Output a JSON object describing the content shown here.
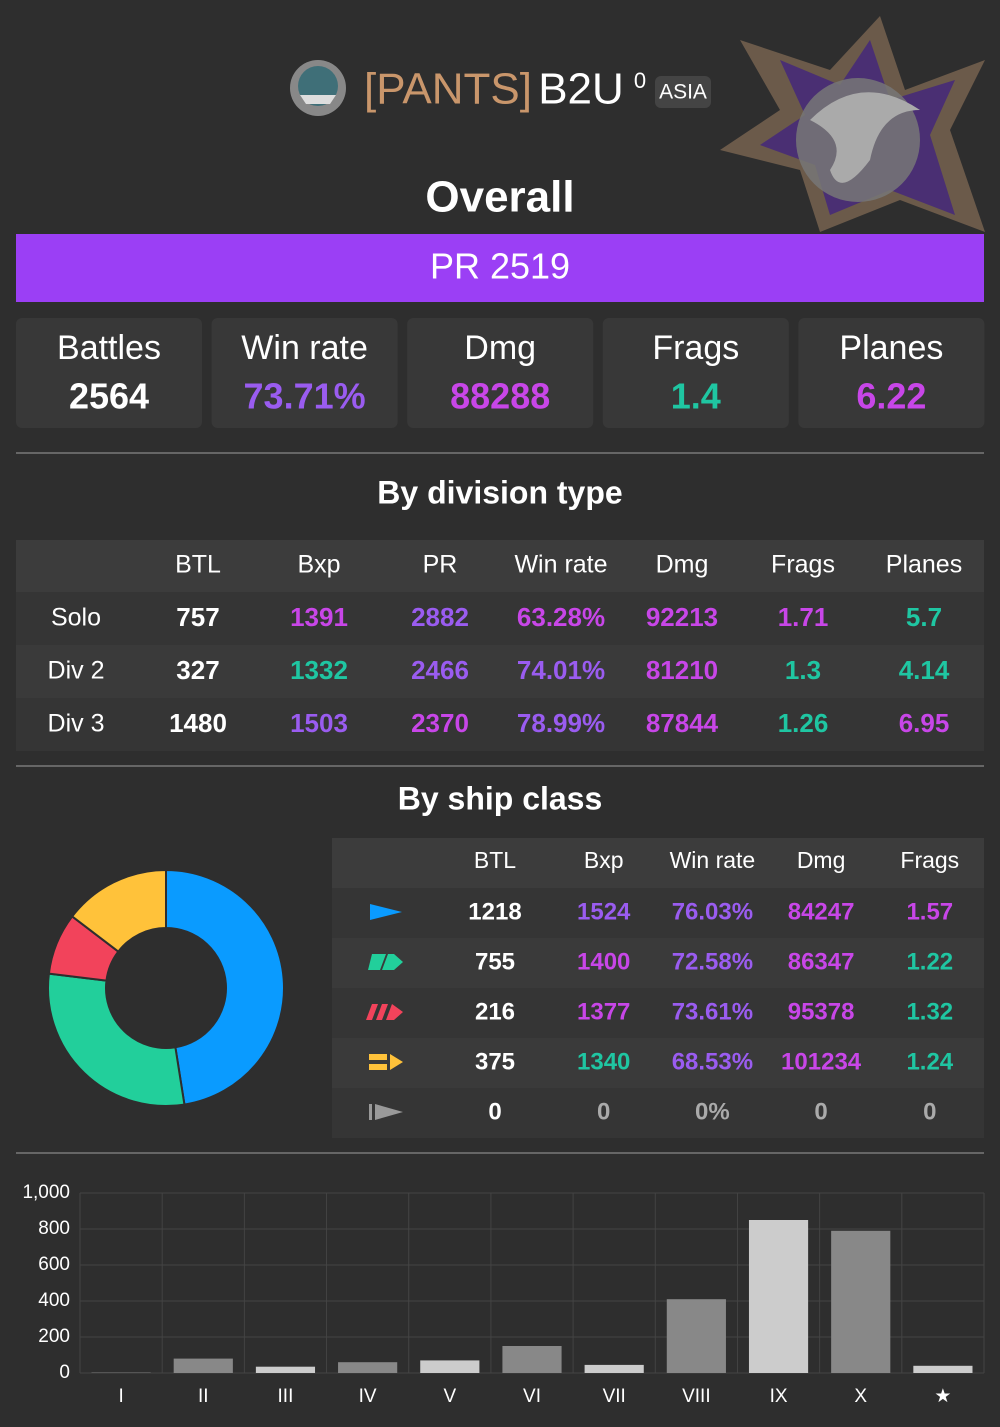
{
  "header": {
    "clan": "[PANTS]",
    "name": "B2U",
    "level": "0",
    "region": "ASIA"
  },
  "overall": {
    "title": "Overall",
    "pr": "PR 2519",
    "stats": [
      {
        "label": "Battles",
        "value": "2564",
        "color": "#ffffff"
      },
      {
        "label": "Win rate",
        "value": "73.71%",
        "color": "#9a5cf0"
      },
      {
        "label": "Dmg",
        "value": "88288",
        "color": "#c846e8"
      },
      {
        "label": "Frags",
        "value": "1.4",
        "color": "#1fc6a2"
      },
      {
        "label": "Planes",
        "value": "6.22",
        "color": "#c846e8"
      }
    ]
  },
  "division": {
    "title": "By division type",
    "columns": [
      "BTL",
      "Bxp",
      "PR",
      "Win rate",
      "Dmg",
      "Frags",
      "Planes"
    ],
    "rows": [
      {
        "label": "Solo",
        "cells": [
          "757",
          "1391",
          "2882",
          "63.28%",
          "92213",
          "1.71",
          "5.7"
        ],
        "colors": [
          "#ffffff",
          "#c846e8",
          "#9a5cf0",
          "#c846e8",
          "#c846e8",
          "#c846e8",
          "#1fc6a2"
        ]
      },
      {
        "label": "Div 2",
        "cells": [
          "327",
          "1332",
          "2466",
          "74.01%",
          "81210",
          "1.3",
          "4.14"
        ],
        "colors": [
          "#ffffff",
          "#1fc6a2",
          "#9a5cf0",
          "#9a5cf0",
          "#c846e8",
          "#1fc6a2",
          "#1fc6a2"
        ]
      },
      {
        "label": "Div 3",
        "cells": [
          "1480",
          "1503",
          "2370",
          "78.99%",
          "87844",
          "1.26",
          "6.95"
        ],
        "colors": [
          "#ffffff",
          "#9a5cf0",
          "#c846e8",
          "#9a5cf0",
          "#c846e8",
          "#1fc6a2",
          "#c846e8"
        ]
      }
    ]
  },
  "ship_class": {
    "title": "By ship class",
    "columns": [
      "BTL",
      "Bxp",
      "Win rate",
      "Dmg",
      "Frags"
    ],
    "rows": [
      {
        "cells": [
          "1218",
          "1524",
          "76.03%",
          "84247",
          "1.57"
        ],
        "colors": [
          "#ffffff",
          "#9a5cf0",
          "#9a5cf0",
          "#c846e8",
          "#c846e8"
        ]
      },
      {
        "cells": [
          "755",
          "1400",
          "72.58%",
          "86347",
          "1.22"
        ],
        "colors": [
          "#ffffff",
          "#c846e8",
          "#9a5cf0",
          "#c846e8",
          "#1fc6a2"
        ]
      },
      {
        "cells": [
          "216",
          "1377",
          "73.61%",
          "95378",
          "1.32"
        ],
        "colors": [
          "#ffffff",
          "#c846e8",
          "#9a5cf0",
          "#c846e8",
          "#1fc6a2"
        ]
      },
      {
        "cells": [
          "375",
          "1340",
          "68.53%",
          "101234",
          "1.24"
        ],
        "colors": [
          "#ffffff",
          "#1fc6a2",
          "#9a5cf0",
          "#c846e8",
          "#1fc6a2"
        ]
      },
      {
        "cells": [
          "0",
          "0",
          "0%",
          "0",
          "0"
        ],
        "colors": [
          "#ffffff",
          "#aaaaaa",
          "#aaaaaa",
          "#aaaaaa",
          "#aaaaaa"
        ]
      }
    ]
  },
  "chart_data": [
    {
      "type": "pie",
      "values": [
        1218,
        755,
        216,
        375,
        0
      ],
      "colors": [
        "#0a9bff",
        "#22cf9b",
        "#f2435b",
        "#ffc23a",
        "#999999"
      ]
    },
    {
      "type": "bar",
      "categories": [
        "I",
        "II",
        "III",
        "IV",
        "V",
        "VI",
        "VII",
        "VIII",
        "IX",
        "X",
        "★"
      ],
      "values": [
        3,
        80,
        35,
        60,
        70,
        150,
        45,
        410,
        850,
        790,
        40
      ],
      "colors": [
        "#777777",
        "#888888",
        "#cccccc",
        "#888888",
        "#cccccc",
        "#888888",
        "#cccccc",
        "#888888",
        "#cccccc",
        "#888888",
        "#cccccc"
      ],
      "ylim": [
        0,
        1000
      ],
      "yticks": [
        0,
        200,
        400,
        600,
        800,
        {
          "value": 1000,
          "label": "1,000"
        }
      ],
      "grid": true
    }
  ]
}
